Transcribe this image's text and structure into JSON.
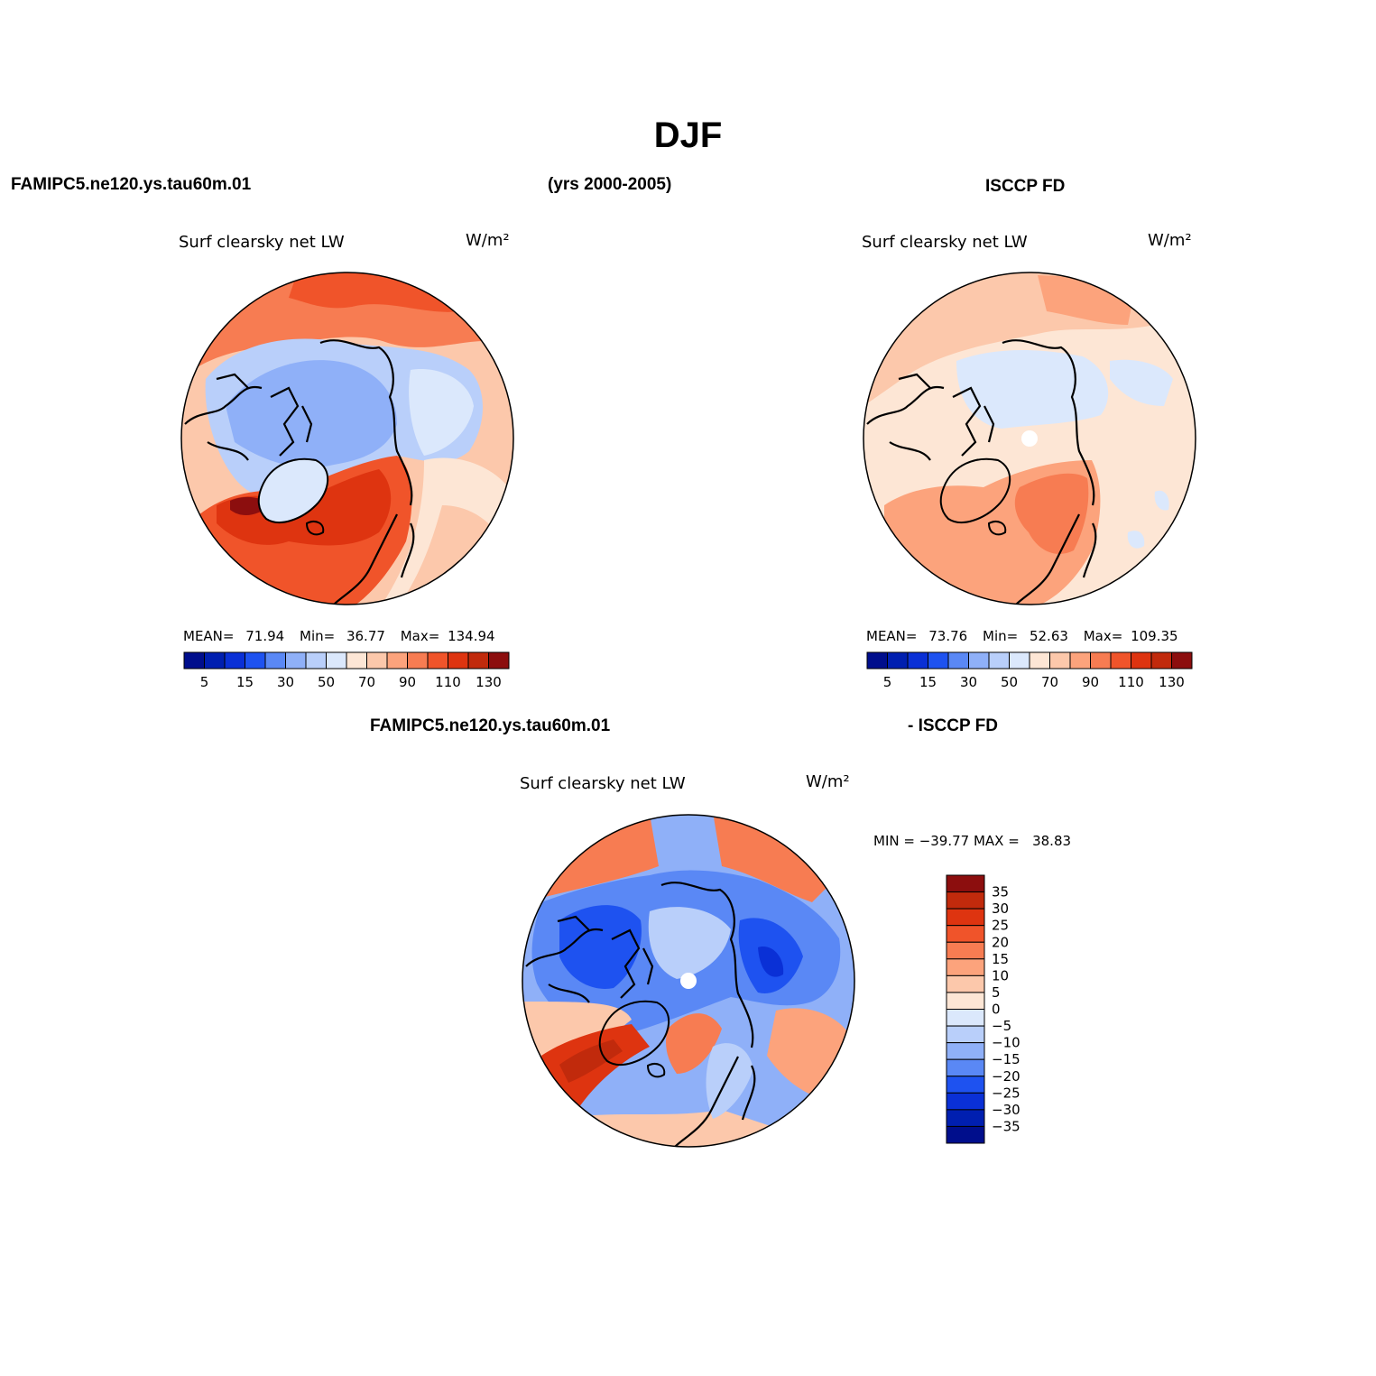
{
  "page_title": "DJF",
  "header": {
    "left": "FAMIPC5.ne120.ys.tau60m.01",
    "center": "(yrs 2000-2005)",
    "right": "ISCCP FD"
  },
  "diff_header": {
    "left": "FAMIPC5.ne120.ys.tau60m.01",
    "right": "- ISCCP FD"
  },
  "panels": [
    {
      "id": "model",
      "variable": "Surf clearsky net LW",
      "units": "W/m²",
      "stats": {
        "mean_label": "MEAN=",
        "mean": "71.94",
        "min_label": "Min=",
        "min": "36.77",
        "max_label": "Max=",
        "max": "134.94"
      }
    },
    {
      "id": "obs",
      "variable": "Surf clearsky net LW",
      "units": "W/m²",
      "stats": {
        "mean_label": "MEAN=",
        "mean": "73.76",
        "min_label": "Min=",
        "min": "52.63",
        "max_label": "Max=",
        "max": "109.35"
      }
    },
    {
      "id": "diff",
      "variable": "Surf clearsky net LW",
      "units": "W/m²",
      "minmax": "MIN = −39.77 MAX =   38.83"
    }
  ],
  "colorbar_h": {
    "colors": [
      "#000e8c",
      "#001fb0",
      "#0a30d6",
      "#1e52f0",
      "#5a88f5",
      "#8fb0f8",
      "#b9cffa",
      "#dbe8fc",
      "#fde6d5",
      "#fcc8ab",
      "#fca37c",
      "#f77c52",
      "#f0542a",
      "#de3410",
      "#c12a0c",
      "#8c0e0e"
    ],
    "labels": [
      "5",
      "15",
      "30",
      "50",
      "70",
      "90",
      "110",
      "130"
    ]
  },
  "colorbar_v": {
    "colors": [
      "#8c0e0e",
      "#c12a0c",
      "#de3410",
      "#f0542a",
      "#f77c52",
      "#fca37c",
      "#fcc8ab",
      "#fde6d5",
      "#dbe8fc",
      "#b9cffa",
      "#8fb0f8",
      "#5a88f5",
      "#1e52f0",
      "#0a30d6",
      "#001fb0",
      "#000e8c"
    ],
    "labels": [
      "35",
      "30",
      "25",
      "20",
      "15",
      "10",
      "5",
      "0",
      "−5",
      "−10",
      "−15",
      "−20",
      "−25",
      "−30",
      "−35"
    ]
  }
}
